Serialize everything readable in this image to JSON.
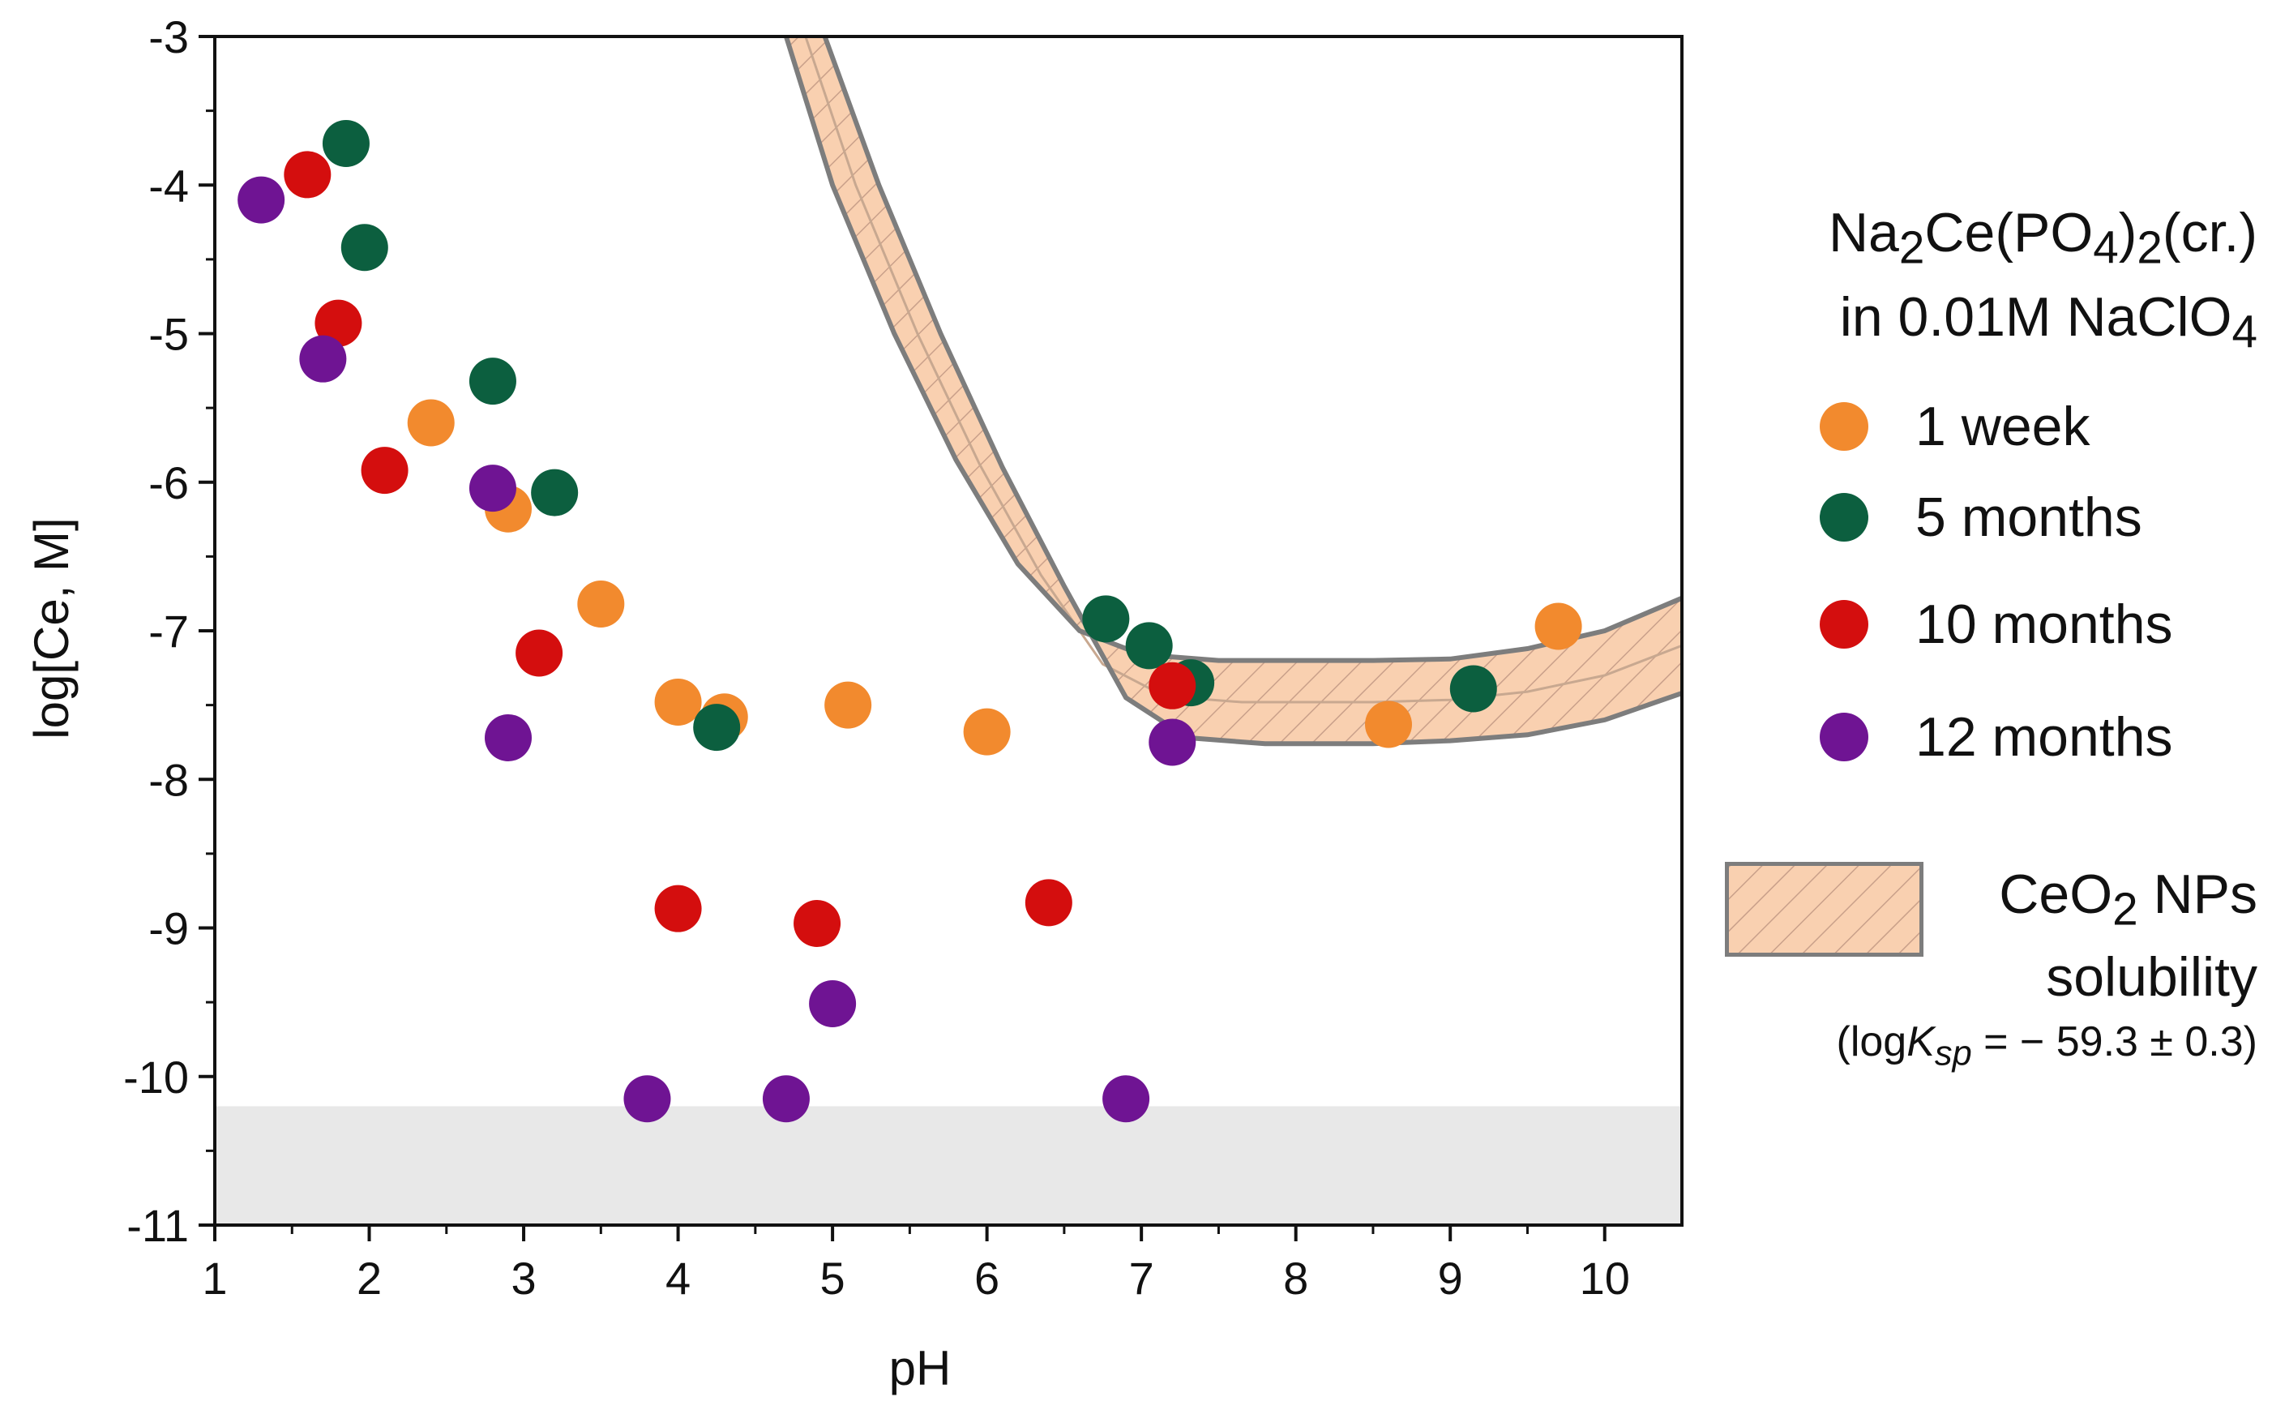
{
  "chart_data": {
    "type": "scatter",
    "xlabel": "pH",
    "ylabel": "log[Ce, M]",
    "xlim": [
      1,
      10.5
    ],
    "ylim": [
      -11,
      -3
    ],
    "xticks": [
      "1",
      "2",
      "3",
      "4",
      "5",
      "6",
      "7",
      "8",
      "9",
      "10"
    ],
    "yticks": [
      "-3",
      "-4",
      "-5",
      "-6",
      "-7",
      "-8",
      "-9",
      "-10",
      "-11"
    ],
    "grid": false,
    "legend_position": "right",
    "legend_title": [
      "Na2Ce(PO4)2(cr.)",
      "in 0.01M NaClO4"
    ],
    "detection_limit_region": {
      "y_from": -11,
      "y_to": -10.2,
      "color": "#e8e8e8"
    },
    "series": [
      {
        "name": "1 week",
        "color": "#f28a2e",
        "points": [
          [
            2.4,
            -5.6
          ],
          [
            2.9,
            -6.18
          ],
          [
            3.5,
            -6.82
          ],
          [
            4.0,
            -7.48
          ],
          [
            4.3,
            -7.58
          ],
          [
            5.1,
            -7.5
          ],
          [
            6.0,
            -7.68
          ],
          [
            8.6,
            -7.63
          ],
          [
            9.7,
            -6.97
          ]
        ]
      },
      {
        "name": "5 months",
        "color": "#0c5f3f",
        "points": [
          [
            1.85,
            -3.72
          ],
          [
            1.97,
            -4.42
          ],
          [
            2.8,
            -5.32
          ],
          [
            3.2,
            -6.07
          ],
          [
            4.25,
            -7.65
          ],
          [
            6.77,
            -6.92
          ],
          [
            7.05,
            -7.1
          ],
          [
            7.32,
            -7.35
          ],
          [
            9.15,
            -7.39
          ]
        ]
      },
      {
        "name": "10 months",
        "color": "#d40e0e",
        "points": [
          [
            1.6,
            -3.93
          ],
          [
            1.8,
            -4.93
          ],
          [
            2.1,
            -5.92
          ],
          [
            3.1,
            -7.15
          ],
          [
            4.0,
            -8.87
          ],
          [
            4.9,
            -8.97
          ],
          [
            6.4,
            -8.83
          ],
          [
            7.2,
            -7.37
          ]
        ]
      },
      {
        "name": "12 months",
        "color": "#6f1493",
        "points": [
          [
            1.3,
            -4.1
          ],
          [
            1.7,
            -5.17
          ],
          [
            2.8,
            -6.04
          ],
          [
            2.9,
            -7.72
          ],
          [
            3.8,
            -10.15
          ],
          [
            4.7,
            -10.15
          ],
          [
            5.0,
            -9.51
          ],
          [
            6.9,
            -10.15
          ],
          [
            7.2,
            -7.75
          ]
        ]
      }
    ],
    "band": {
      "name": "CeO2 NPs solubility",
      "note": "(logKsp = − 59.3 ± 0.3)",
      "fill": "#f9d0b0",
      "edge": "#7d7d7d",
      "upper": [
        [
          4.7,
          -3.0
        ],
        [
          5.0,
          -4.0
        ],
        [
          5.4,
          -5.0
        ],
        [
          5.8,
          -5.85
        ],
        [
          6.2,
          -6.55
        ],
        [
          6.6,
          -7.0
        ],
        [
          7.0,
          -7.16
        ],
        [
          7.5,
          -7.2
        ],
        [
          8.5,
          -7.2
        ],
        [
          9.0,
          -7.19
        ],
        [
          9.5,
          -7.12
        ],
        [
          10.0,
          -7.0
        ],
        [
          10.5,
          -6.78
        ]
      ],
      "lower": [
        [
          4.95,
          -3.0
        ],
        [
          5.3,
          -4.0
        ],
        [
          5.7,
          -5.0
        ],
        [
          6.1,
          -5.9
        ],
        [
          6.5,
          -6.7
        ],
        [
          6.9,
          -7.45
        ],
        [
          7.3,
          -7.72
        ],
        [
          7.8,
          -7.76
        ],
        [
          8.5,
          -7.76
        ],
        [
          9.0,
          -7.74
        ],
        [
          9.5,
          -7.7
        ],
        [
          10.0,
          -7.6
        ],
        [
          10.5,
          -7.42
        ]
      ]
    }
  },
  "legend": {
    "title_line1_a": "Na",
    "title_line1_sub1": "2",
    "title_line1_b": "Ce(PO",
    "title_line1_sub2": "4",
    "title_line1_c": ")",
    "title_line1_sub3": "2",
    "title_line1_d": "(cr.)",
    "title_line2_a": "in 0.01M NaClO",
    "title_line2_sub": "4",
    "items": [
      "1 week",
      "5 months",
      "10 months",
      "12 months"
    ],
    "band_label_a": "CeO",
    "band_label_sub": "2",
    "band_label_b": " NPs",
    "band_label_line2": "solubility",
    "band_note_a": "(log",
    "band_note_k": "K",
    "band_note_sub": "sp",
    "band_note_b": " = − 59.3 ± 0.3)"
  }
}
